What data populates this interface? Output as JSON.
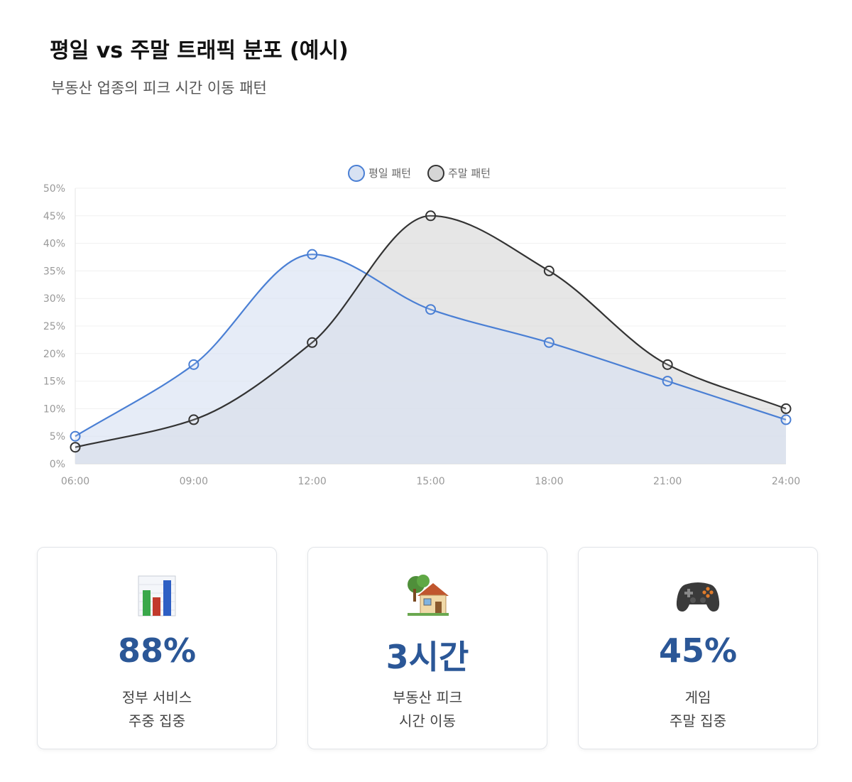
{
  "header": {
    "title": "평일 vs 주말 트래픽 분포 (예시)",
    "subtitle": "부동산 업종의 피크 시간 이동 패턴"
  },
  "chart_data": {
    "type": "area",
    "x": [
      "06:00",
      "09:00",
      "12:00",
      "15:00",
      "18:00",
      "21:00",
      "24:00"
    ],
    "y_ticks": [
      "0%",
      "5%",
      "10%",
      "15%",
      "20%",
      "25%",
      "30%",
      "35%",
      "40%",
      "45%",
      "50%"
    ],
    "ylim": [
      0,
      50
    ],
    "grid": true,
    "legend_position": "top-center",
    "series": [
      {
        "name": "평일 패턴",
        "values": [
          5,
          18,
          38,
          28,
          22,
          15,
          8
        ],
        "color": "#4a7fd4",
        "fill": "#d8e2f3"
      },
      {
        "name": "주말 패턴",
        "values": [
          3,
          8,
          22,
          45,
          35,
          18,
          10
        ],
        "color": "#333333",
        "fill": "#d6d6d6"
      }
    ]
  },
  "cards": [
    {
      "icon": "bar-chart-icon",
      "value": "88%",
      "label_line1": "정부 서비스",
      "label_line2": "주중 집중"
    },
    {
      "icon": "house-icon",
      "value": "3시간",
      "label_line1": "부동산 피크",
      "label_line2": "시간 이동"
    },
    {
      "icon": "gamepad-icon",
      "value": "45%",
      "label_line1": "게임",
      "label_line2": "주말 집중"
    }
  ]
}
